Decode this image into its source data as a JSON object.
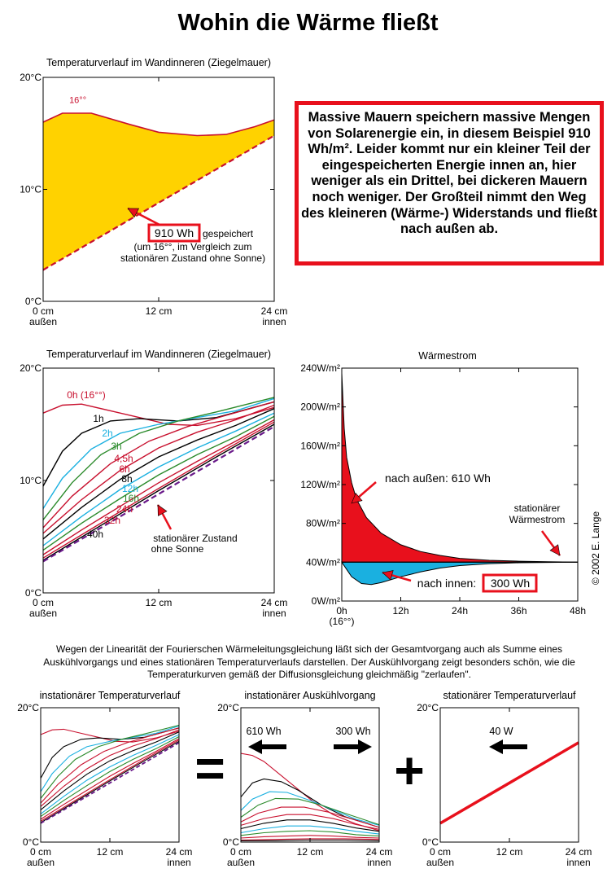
{
  "title": "Wohin die Wärme fließt",
  "note_text": "Massive Mauern speichern massive Mengen von Solarenergie ein, in diesem Beispiel 910 Wh/m². Leider kommt nur ein kleiner Teil der eingespeicherten Energie innen an, hier weniger als ein Drittel, bei dickeren Mauern noch weniger. Der Großteil nimmt den Weg des kleineren (Wärme-) Widerstands und fließt nach außen ab.",
  "paragraph": "Wegen der Linearität der Fourierschen Wärmeleitungsgleichung läßt sich der Gesamtvorgang auch als Summe eines Auskühlvorgangs und eines stationären Temperaturverlaufs darstellen. Der Auskühlvorgang zeigt besonders schön, wie die Temperaturkurven gemäß der Diffusionsgleichung gleichmäßig \"zerlaufen\".",
  "copyright": "© 2002 E. Lange",
  "colors": {
    "accent_red": "#e8101c",
    "fill_yellow": "#ffd200",
    "fill_blue": "#1ab0e0",
    "curve_red": "#c8102e"
  },
  "chart_data": [
    {
      "type": "area",
      "title": "Temperaturverlauf im Wandinneren (Ziegelmauer)",
      "x_ticks": [
        "0 cm",
        "12 cm",
        "24 cm"
      ],
      "x_tick_sub": [
        "außen",
        "",
        "innen"
      ],
      "y_ticks": [
        "0°C",
        "10°C",
        "20°C"
      ],
      "xlim": [
        0,
        24
      ],
      "ylim": [
        0,
        20
      ],
      "series": [
        {
          "name": "16°°",
          "x": [
            0,
            2,
            5,
            9,
            12,
            16,
            19,
            22,
            24
          ],
          "y": [
            16.0,
            16.8,
            16.8,
            15.8,
            15.1,
            14.8,
            14.9,
            15.6,
            16.2
          ]
        },
        {
          "name": "stationärer Zustand ohne Sonne",
          "x": [
            0,
            24
          ],
          "y": [
            2.8,
            14.8
          ]
        }
      ],
      "annotations": [
        "910 Wh",
        "gespeichert",
        "(um 16°°, im Vergleich zum",
        "stationären Zustand ohne Sonne)"
      ]
    },
    {
      "type": "line",
      "title": "Temperaturverlauf im Wandinneren (Ziegelmauer)",
      "x_ticks": [
        "0 cm",
        "12 cm",
        "24 cm"
      ],
      "x_tick_sub": [
        "außen",
        "",
        "innen"
      ],
      "y_ticks": [
        "0°C",
        "10°C",
        "20°C"
      ],
      "xlim": [
        0,
        24
      ],
      "ylim": [
        0,
        20
      ],
      "series": [
        {
          "name": "0h (16°°)",
          "color": "#c8102e",
          "x": [
            0,
            2,
            4,
            7,
            10,
            13,
            16,
            20,
            24
          ],
          "y": [
            16.0,
            16.7,
            16.8,
            16.2,
            15.6,
            15.0,
            14.9,
            15.5,
            16.5
          ]
        },
        {
          "name": "1h",
          "color": "#000000",
          "x": [
            0,
            2,
            4,
            7,
            10,
            14,
            18,
            24
          ],
          "y": [
            9.5,
            12.6,
            14.2,
            15.3,
            15.5,
            15.3,
            15.6,
            17.0
          ]
        },
        {
          "name": "2h",
          "color": "#1ab0e0",
          "x": [
            0,
            2,
            5,
            8,
            12,
            16,
            20,
            24
          ],
          "y": [
            7.5,
            10.2,
            12.8,
            14.2,
            15.0,
            15.6,
            16.2,
            17.3
          ]
        },
        {
          "name": "3h",
          "color": "#2a8a2a",
          "x": [
            0,
            3,
            6,
            10,
            14,
            18,
            24
          ],
          "y": [
            6.5,
            9.8,
            12.3,
            14.2,
            15.3,
            16.1,
            17.4
          ]
        },
        {
          "name": "4,5h",
          "color": "#c8102e",
          "x": [
            0,
            3,
            7,
            11,
            15,
            19,
            24
          ],
          "y": [
            5.8,
            8.6,
            11.5,
            13.5,
            14.8,
            15.8,
            17.0
          ]
        },
        {
          "name": "6h",
          "color": "#c8102e",
          "x": [
            0,
            4,
            8,
            12,
            16,
            20,
            24
          ],
          "y": [
            5.3,
            8.3,
            10.9,
            12.9,
            14.3,
            15.4,
            16.7
          ]
        },
        {
          "name": "8h",
          "color": "#000000",
          "x": [
            0,
            4,
            8,
            12,
            16,
            20,
            24
          ],
          "y": [
            4.8,
            7.6,
            10.1,
            12.1,
            13.6,
            14.9,
            16.4
          ]
        },
        {
          "name": "12h",
          "color": "#1ab0e0",
          "x": [
            0,
            4,
            8,
            12,
            16,
            20,
            24
          ],
          "y": [
            4.2,
            6.8,
            9.2,
            11.2,
            12.9,
            14.4,
            16.0
          ]
        },
        {
          "name": "16h",
          "color": "#2a8a2a",
          "x": [
            0,
            4,
            8,
            12,
            16,
            20,
            24
          ],
          "y": [
            3.8,
            6.2,
            8.4,
            10.5,
            12.3,
            13.9,
            15.7
          ]
        },
        {
          "name": "24h",
          "color": "#c8102e",
          "x": [
            0,
            4,
            8,
            12,
            16,
            20,
            24
          ],
          "y": [
            3.4,
            5.6,
            7.7,
            9.8,
            11.7,
            13.5,
            15.4
          ]
        },
        {
          "name": "32h",
          "color": "#c8102e",
          "x": [
            0,
            6,
            12,
            18,
            24
          ],
          "y": [
            3.1,
            6.2,
            9.3,
            12.3,
            15.2
          ]
        },
        {
          "name": "40h",
          "color": "#000000",
          "x": [
            0,
            6,
            12,
            18,
            24
          ],
          "y": [
            2.9,
            6.0,
            9.1,
            12.1,
            15.0
          ]
        },
        {
          "name": "stationärer Zustand ohne Sonne",
          "color": "#6a1a8a",
          "x": [
            0,
            24
          ],
          "y": [
            2.8,
            14.8
          ]
        }
      ],
      "annotations": [
        "stationärer Zustand",
        "ohne Sonne"
      ]
    },
    {
      "type": "area",
      "title": "Wärmestrom",
      "x_ticks": [
        "0h",
        "12h",
        "24h",
        "36h",
        "48h"
      ],
      "x_tick_sub": [
        "(16°°)",
        "",
        "",
        "",
        ""
      ],
      "y_ticks": [
        "0W/m²",
        "40W/m²",
        "80W/m²",
        "120W/m²",
        "160W/m²",
        "200W/m²",
        "240W/m²"
      ],
      "xlim": [
        0,
        48
      ],
      "ylim": [
        0,
        240
      ],
      "series": [
        {
          "name": "nach außen: 610 Wh",
          "color": "#e8101c",
          "x": [
            0,
            0.5,
            1,
            2,
            3,
            5,
            8,
            12,
            16,
            20,
            24,
            30,
            36,
            42,
            48
          ],
          "y": [
            235,
            178,
            148,
            122,
            105,
            86,
            70,
            58,
            51,
            47,
            44,
            42,
            41,
            40.5,
            40
          ]
        },
        {
          "name": "nach innen: 300 Wh",
          "color": "#1ab0e0",
          "x": [
            0,
            2,
            4,
            6,
            8,
            12,
            16,
            20,
            24,
            30,
            36,
            48
          ],
          "y": [
            40,
            25,
            18,
            17,
            19,
            25,
            30,
            34,
            36.5,
            38.5,
            39.4,
            40
          ]
        }
      ],
      "stationary_W_m2": 40,
      "annotations": [
        "stationärer",
        "Wärmestrom"
      ]
    },
    {
      "type": "line",
      "title": "instationärer Temperaturverlauf",
      "x_ticks": [
        "0 cm",
        "12 cm",
        "24 cm"
      ],
      "x_tick_sub": [
        "außen",
        "",
        "innen"
      ],
      "y_ticks": [
        "0°C",
        "20°C"
      ],
      "xlim": [
        0,
        24
      ],
      "ylim": [
        0,
        20
      ]
    },
    {
      "type": "line",
      "title": "instationärer Auskühlvorgang",
      "x_ticks": [
        "0 cm",
        "12 cm",
        "24 cm"
      ],
      "x_tick_sub": [
        "außen",
        "",
        "innen"
      ],
      "y_ticks": [
        "0°C",
        "20°C"
      ],
      "xlim": [
        0,
        24
      ],
      "ylim": [
        0,
        20
      ],
      "annotations": [
        "610 Wh",
        "300 Wh"
      ]
    },
    {
      "type": "line",
      "title": "stationärer Temperaturverlauf",
      "x_ticks": [
        "0 cm",
        "12 cm",
        "24 cm"
      ],
      "x_tick_sub": [
        "außen",
        "",
        "innen"
      ],
      "y_ticks": [
        "0°C",
        "20°C"
      ],
      "xlim": [
        0,
        24
      ],
      "ylim": [
        0,
        20
      ],
      "series": [
        {
          "color": "#e8101c",
          "x": [
            0,
            24
          ],
          "y": [
            2.8,
            14.8
          ]
        }
      ],
      "annotations": [
        "40 W"
      ]
    }
  ],
  "operators": [
    "=",
    "+"
  ]
}
